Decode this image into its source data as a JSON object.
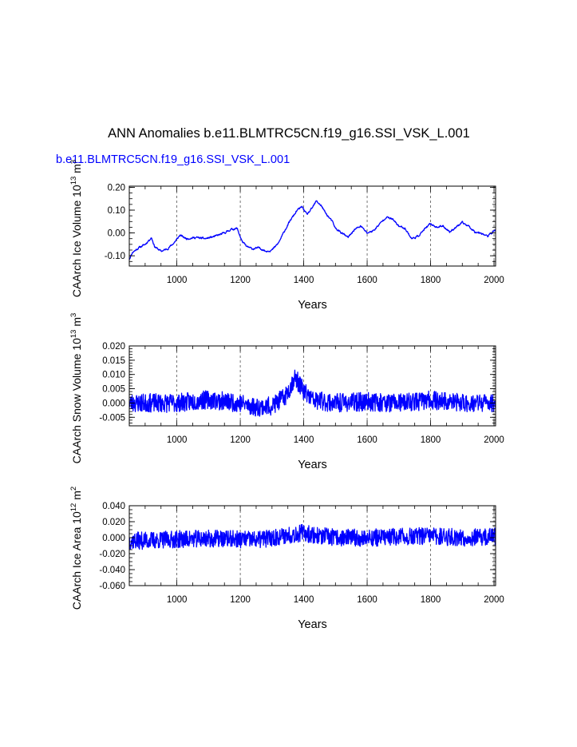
{
  "figure": {
    "title": "ANN Anomalies b.e11.BLMTRC5CN.f19_g16.SSI_VSK_L.001",
    "case_label": "b.e11.BLMTRC5CN.f19_g16.SSI_VSK_L.001",
    "line_color": "#0000ff",
    "grid_color": "#555555"
  },
  "chart_data": [
    {
      "type": "line",
      "ylabel": "CAArch Ice Volume 10",
      "ylabel_exp": "13",
      "ylabel_unit": " m",
      "ylabel_unit_exp": "3",
      "xlabel": "Years",
      "xlim": [
        850,
        2005
      ],
      "ylim": [
        -0.145,
        0.205
      ],
      "xticks": [
        1000,
        1200,
        1400,
        1600,
        1800,
        2000
      ],
      "yticks": [
        -0.1,
        0.0,
        0.1,
        0.2
      ],
      "ytick_labels": [
        "-0.10",
        "0.00",
        "0.10",
        "0.20"
      ],
      "minor_xstep": 50,
      "minor_ystep": 0.025,
      "noise": 0.008,
      "seed": 11,
      "series": [
        {
          "values": [
            [
              850,
              -0.115
            ],
            [
              860,
              -0.085
            ],
            [
              880,
              -0.065
            ],
            [
              900,
              -0.05
            ],
            [
              910,
              -0.035
            ],
            [
              920,
              -0.02
            ],
            [
              930,
              -0.06
            ],
            [
              950,
              -0.08
            ],
            [
              970,
              -0.07
            ],
            [
              990,
              -0.045
            ],
            [
              1010,
              -0.01
            ],
            [
              1030,
              -0.025
            ],
            [
              1060,
              -0.02
            ],
            [
              1090,
              -0.025
            ],
            [
              1120,
              -0.015
            ],
            [
              1150,
              0.0
            ],
            [
              1170,
              0.015
            ],
            [
              1190,
              0.02
            ],
            [
              1205,
              -0.035
            ],
            [
              1220,
              -0.06
            ],
            [
              1240,
              -0.07
            ],
            [
              1260,
              -0.065
            ],
            [
              1280,
              -0.08
            ],
            [
              1300,
              -0.075
            ],
            [
              1320,
              -0.045
            ],
            [
              1340,
              0.01
            ],
            [
              1360,
              0.06
            ],
            [
              1380,
              0.1
            ],
            [
              1395,
              0.115
            ],
            [
              1410,
              0.08
            ],
            [
              1425,
              0.105
            ],
            [
              1440,
              0.14
            ],
            [
              1455,
              0.12
            ],
            [
              1470,
              0.085
            ],
            [
              1490,
              0.05
            ],
            [
              1500,
              0.02
            ],
            [
              1520,
              0.0
            ],
            [
              1540,
              -0.02
            ],
            [
              1560,
              0.015
            ],
            [
              1580,
              0.03
            ],
            [
              1600,
              0.0
            ],
            [
              1620,
              0.01
            ],
            [
              1640,
              0.04
            ],
            [
              1660,
              0.07
            ],
            [
              1680,
              0.06
            ],
            [
              1700,
              0.03
            ],
            [
              1720,
              0.02
            ],
            [
              1740,
              -0.025
            ],
            [
              1760,
              -0.015
            ],
            [
              1780,
              0.015
            ],
            [
              1800,
              0.04
            ],
            [
              1820,
              0.025
            ],
            [
              1840,
              0.03
            ],
            [
              1860,
              0.005
            ],
            [
              1880,
              0.025
            ],
            [
              1900,
              0.045
            ],
            [
              1920,
              0.03
            ],
            [
              1940,
              0.005
            ],
            [
              1960,
              0.0
            ],
            [
              1980,
              -0.015
            ],
            [
              2000,
              0.01
            ],
            [
              2005,
              0.01
            ]
          ]
        }
      ]
    },
    {
      "type": "line",
      "ylabel": "CAArch Snow Volume 10",
      "ylabel_exp": "13",
      "ylabel_unit": " m",
      "ylabel_unit_exp": "3",
      "xlabel": "Years",
      "xlim": [
        850,
        2005
      ],
      "ylim": [
        -0.008,
        0.02
      ],
      "xticks": [
        1000,
        1200,
        1400,
        1600,
        1800,
        2000
      ],
      "yticks": [
        -0.005,
        0.0,
        0.005,
        0.01,
        0.015,
        0.02
      ],
      "ytick_labels": [
        "-0.005",
        "0.000",
        "0.005",
        "0.010",
        "0.015",
        "0.020"
      ],
      "minor_xstep": 50,
      "minor_ystep": 0.001,
      "noise": 0.0033,
      "seed": 23,
      "series": [
        {
          "values": [
            [
              850,
              0.0
            ],
            [
              1000,
              0.0
            ],
            [
              1100,
              0.0012
            ],
            [
              1200,
              0.0
            ],
            [
              1250,
              -0.0015
            ],
            [
              1300,
              -0.001
            ],
            [
              1340,
              0.002
            ],
            [
              1360,
              0.006
            ],
            [
              1370,
              0.009
            ],
            [
              1385,
              0.007
            ],
            [
              1400,
              0.004
            ],
            [
              1430,
              0.001
            ],
            [
              1500,
              0.0
            ],
            [
              1600,
              0.0005
            ],
            [
              1700,
              0.0
            ],
            [
              1800,
              0.001
            ],
            [
              1900,
              0.0
            ],
            [
              2005,
              0.0
            ]
          ]
        }
      ]
    },
    {
      "type": "line",
      "ylabel": "CAArch Ice Area 10",
      "ylabel_exp": "12",
      "ylabel_unit": " m",
      "ylabel_unit_exp": "2",
      "xlabel": "Years",
      "xlim": [
        850,
        2005
      ],
      "ylim": [
        -0.06,
        0.04
      ],
      "xticks": [
        1000,
        1200,
        1400,
        1600,
        1800,
        2000
      ],
      "yticks": [
        -0.06,
        -0.04,
        -0.02,
        0.0,
        0.02,
        0.04
      ],
      "ytick_labels": [
        "-0.060",
        "-0.040",
        "-0.020",
        "0.000",
        "0.020",
        "0.040"
      ],
      "minor_xstep": 50,
      "minor_ystep": 0.005,
      "noise": 0.011,
      "seed": 37,
      "series": [
        {
          "values": [
            [
              850,
              -0.004
            ],
            [
              950,
              -0.003
            ],
            [
              1000,
              -0.002
            ],
            [
              1100,
              -0.001
            ],
            [
              1200,
              -0.002
            ],
            [
              1250,
              -0.003
            ],
            [
              1300,
              0.0
            ],
            [
              1360,
              0.004
            ],
            [
              1400,
              0.006
            ],
            [
              1450,
              0.002
            ],
            [
              1500,
              0.0
            ],
            [
              1600,
              0.0
            ],
            [
              1700,
              0.001
            ],
            [
              1800,
              0.002
            ],
            [
              1900,
              0.0
            ],
            [
              2005,
              0.001
            ]
          ]
        }
      ]
    }
  ]
}
